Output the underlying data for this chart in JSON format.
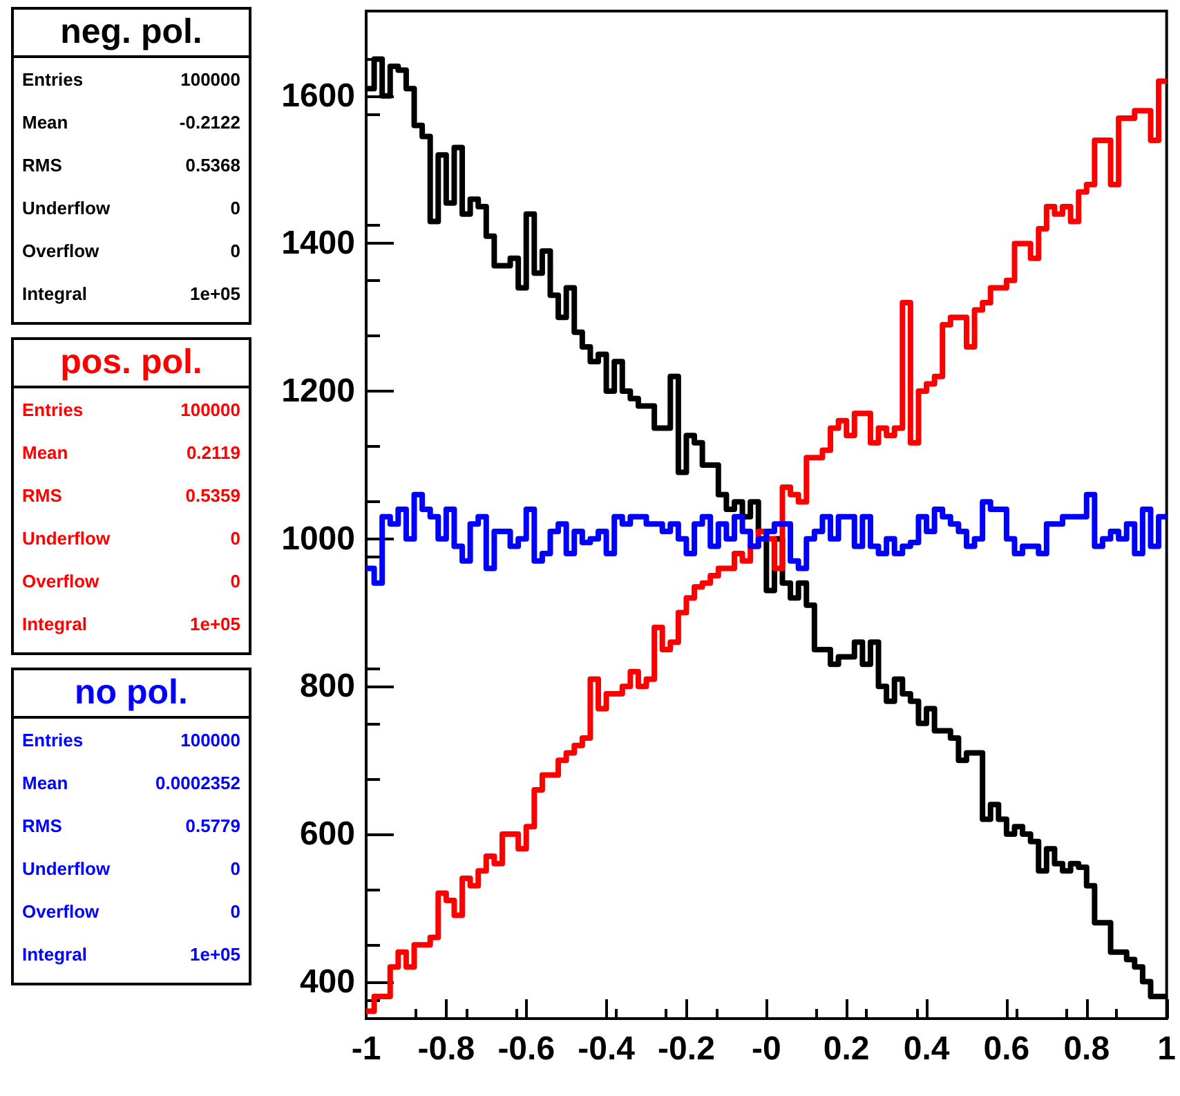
{
  "chart_data": {
    "type": "histogram",
    "bins": [
      -1,
      -0.98,
      -0.96,
      -0.94,
      -0.92,
      -0.9,
      -0.88,
      -0.86,
      -0.84,
      -0.82,
      -0.8,
      -0.78,
      -0.76,
      -0.74,
      -0.72,
      -0.7,
      -0.68,
      -0.66,
      -0.64,
      -0.62,
      -0.6,
      -0.58,
      -0.56,
      -0.54,
      -0.52,
      -0.5,
      -0.48,
      -0.46,
      -0.44,
      -0.42,
      -0.4,
      -0.38,
      -0.36,
      -0.34,
      -0.32,
      -0.3,
      -0.28,
      -0.26,
      -0.24,
      -0.22,
      -0.2,
      -0.18,
      -0.16,
      -0.14,
      -0.12,
      -0.1,
      -0.08,
      -0.06,
      -0.04,
      -0.02,
      0,
      0.02,
      0.04,
      0.06,
      0.08,
      0.1,
      0.12,
      0.14,
      0.16,
      0.18,
      0.2,
      0.22,
      0.24,
      0.26,
      0.28,
      0.3,
      0.32,
      0.34,
      0.36,
      0.38,
      0.4,
      0.42,
      0.44,
      0.46,
      0.48,
      0.5,
      0.52,
      0.54,
      0.56,
      0.58,
      0.6,
      0.62,
      0.64,
      0.66,
      0.68,
      0.7,
      0.72,
      0.74,
      0.76,
      0.78,
      0.8,
      0.82,
      0.84,
      0.86,
      0.88,
      0.9,
      0.92,
      0.94,
      0.96,
      0.98,
      1
    ],
    "series": [
      {
        "name": "neg. pol.",
        "color": "#000000",
        "values": [
          1610,
          1650,
          1600,
          1640,
          1635,
          1610,
          1560,
          1545,
          1430,
          1520,
          1455,
          1530,
          1440,
          1460,
          1450,
          1410,
          1370,
          1370,
          1380,
          1340,
          1440,
          1360,
          1390,
          1330,
          1300,
          1340,
          1280,
          1260,
          1240,
          1250,
          1200,
          1240,
          1200,
          1190,
          1180,
          1180,
          1150,
          1150,
          1220,
          1090,
          1140,
          1130,
          1100,
          1100,
          1060,
          1040,
          1050,
          1030,
          1050,
          1010,
          930,
          1000,
          940,
          920,
          940,
          910,
          850,
          850,
          830,
          840,
          840,
          860,
          830,
          860,
          800,
          780,
          810,
          790,
          780,
          750,
          770,
          740,
          740,
          730,
          700,
          710,
          710,
          620,
          640,
          620,
          600,
          610,
          600,
          590,
          550,
          580,
          560,
          550,
          560,
          555,
          530,
          480,
          480,
          440,
          440,
          430,
          420,
          400,
          380,
          380
        ]
      },
      {
        "name": "pos. pol.",
        "color": "#ff0000",
        "values": [
          360,
          380,
          380,
          420,
          440,
          420,
          450,
          450,
          460,
          520,
          510,
          490,
          540,
          530,
          550,
          570,
          560,
          600,
          600,
          580,
          610,
          660,
          680,
          680,
          700,
          710,
          720,
          730,
          810,
          770,
          790,
          790,
          800,
          820,
          800,
          810,
          880,
          850,
          860,
          900,
          920,
          935,
          940,
          950,
          960,
          960,
          980,
          970,
          990,
          1010,
          1000,
          960,
          1070,
          1060,
          1050,
          1110,
          1110,
          1120,
          1150,
          1160,
          1140,
          1170,
          1170,
          1130,
          1150,
          1140,
          1150,
          1320,
          1130,
          1200,
          1210,
          1220,
          1290,
          1300,
          1300,
          1260,
          1310,
          1320,
          1340,
          1340,
          1350,
          1400,
          1400,
          1380,
          1420,
          1450,
          1440,
          1450,
          1430,
          1470,
          1480,
          1540,
          1540,
          1480,
          1570,
          1570,
          1580,
          1580,
          1540,
          1620
        ]
      },
      {
        "name": "no pol.",
        "color": "#0000ff",
        "values": [
          960,
          940,
          1030,
          1020,
          1040,
          1000,
          1060,
          1040,
          1030,
          1000,
          1040,
          990,
          970,
          1020,
          1030,
          960,
          1010,
          1010,
          990,
          1000,
          1040,
          970,
          980,
          1010,
          1020,
          980,
          1010,
          995,
          1000,
          1010,
          980,
          1030,
          1020,
          1030,
          1030,
          1020,
          1020,
          1010,
          1020,
          1000,
          980,
          1020,
          1030,
          990,
          1020,
          1000,
          1030,
          1010,
          990,
          1000,
          1010,
          1020,
          1020,
          970,
          960,
          1000,
          1010,
          1030,
          1000,
          1030,
          1030,
          990,
          1030,
          990,
          980,
          1000,
          980,
          990,
          995,
          1030,
          1010,
          1040,
          1030,
          1020,
          1010,
          990,
          1000,
          1050,
          1040,
          1040,
          1000,
          980,
          990,
          990,
          980,
          1020,
          1020,
          1030,
          1030,
          1030,
          1060,
          990,
          1000,
          1010,
          1000,
          1020,
          980,
          1040,
          990,
          1030
        ]
      }
    ],
    "annotations": [
      "Entries",
      "100000",
      "Mean",
      "-0.2122",
      "RMS",
      "0.5368",
      "Underflow",
      "0",
      "Overflow",
      "0",
      "Integral",
      "1e+05",
      "Entries",
      "100000",
      "Mean",
      "0.2119",
      "RMS",
      "0.5359",
      "Underflow",
      "0",
      "Overflow",
      "0",
      "Integral",
      "1e+05",
      "Entries",
      "100000",
      "Mean",
      "0.0002352",
      "RMS",
      "0.5779",
      "Underflow",
      "0",
      "Overflow",
      "0",
      "Integral",
      "1e+05"
    ],
    "xlim": [
      -1,
      1
    ],
    "xticks": [
      -1,
      -0.8,
      -0.6,
      -0.4,
      -0.2,
      {
        "value": 0,
        "label": "-0"
      },
      0.2,
      0.4,
      0.6,
      0.8,
      1
    ],
    "ylim": [
      350,
      1715
    ],
    "yticks": [
      400,
      600,
      800,
      1000,
      1200,
      1400,
      1600
    ],
    "grid": false,
    "legend": "left"
  }
}
